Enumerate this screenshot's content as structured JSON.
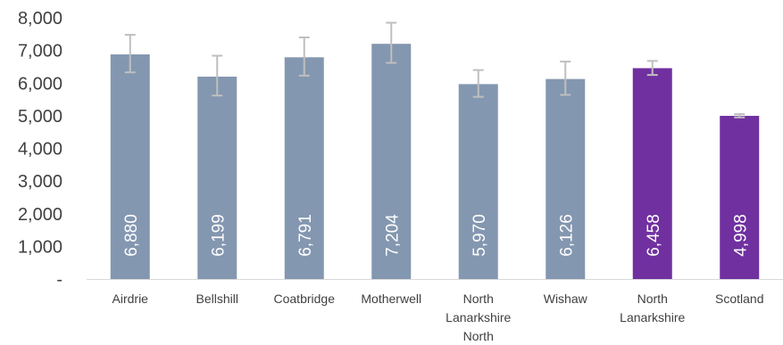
{
  "chart_data": {
    "type": "bar",
    "categories": [
      [
        "Airdrie"
      ],
      [
        "Bellshill"
      ],
      [
        "Coatbridge"
      ],
      [
        "Motherwell"
      ],
      [
        "North",
        "Lanarkshire",
        "North"
      ],
      [
        "Wishaw"
      ],
      [
        "North",
        "Lanarkshire"
      ],
      [
        "Scotland"
      ]
    ],
    "values": [
      6880,
      6199,
      6791,
      7204,
      5970,
      6126,
      6458,
      4998
    ],
    "value_labels": [
      "6,880",
      "6,199",
      "6,791",
      "7,204",
      "5,970",
      "6,126",
      "6,458",
      "4,998"
    ],
    "error_bars": [
      {
        "low": 6330,
        "high": 7480
      },
      {
        "low": 5620,
        "high": 6840
      },
      {
        "low": 6230,
        "high": 7400
      },
      {
        "low": 6620,
        "high": 7850
      },
      {
        "low": 5580,
        "high": 6400
      },
      {
        "low": 5640,
        "high": 6660
      },
      {
        "low": 6250,
        "high": 6680
      },
      {
        "low": 4950,
        "high": 5050
      }
    ],
    "bar_colors": [
      "#8497b0",
      "#8497b0",
      "#8497b0",
      "#8497b0",
      "#8497b0",
      "#8497b0",
      "#7030a0",
      "#7030a0"
    ],
    "error_bar_color": "#bfbfbf",
    "y_ticks": [
      {
        "value": 0,
        "label": "-"
      },
      {
        "value": 1000,
        "label": "1,000"
      },
      {
        "value": 2000,
        "label": "2,000"
      },
      {
        "value": 3000,
        "label": "3,000"
      },
      {
        "value": 4000,
        "label": "4,000"
      },
      {
        "value": 5000,
        "label": "5,000"
      },
      {
        "value": 6000,
        "label": "6,000"
      },
      {
        "value": 7000,
        "label": "7,000"
      },
      {
        "value": 8000,
        "label": "8,000"
      }
    ],
    "ylim": [
      0,
      8000
    ],
    "grid": false,
    "title": "",
    "xlabel": "",
    "ylabel": ""
  }
}
